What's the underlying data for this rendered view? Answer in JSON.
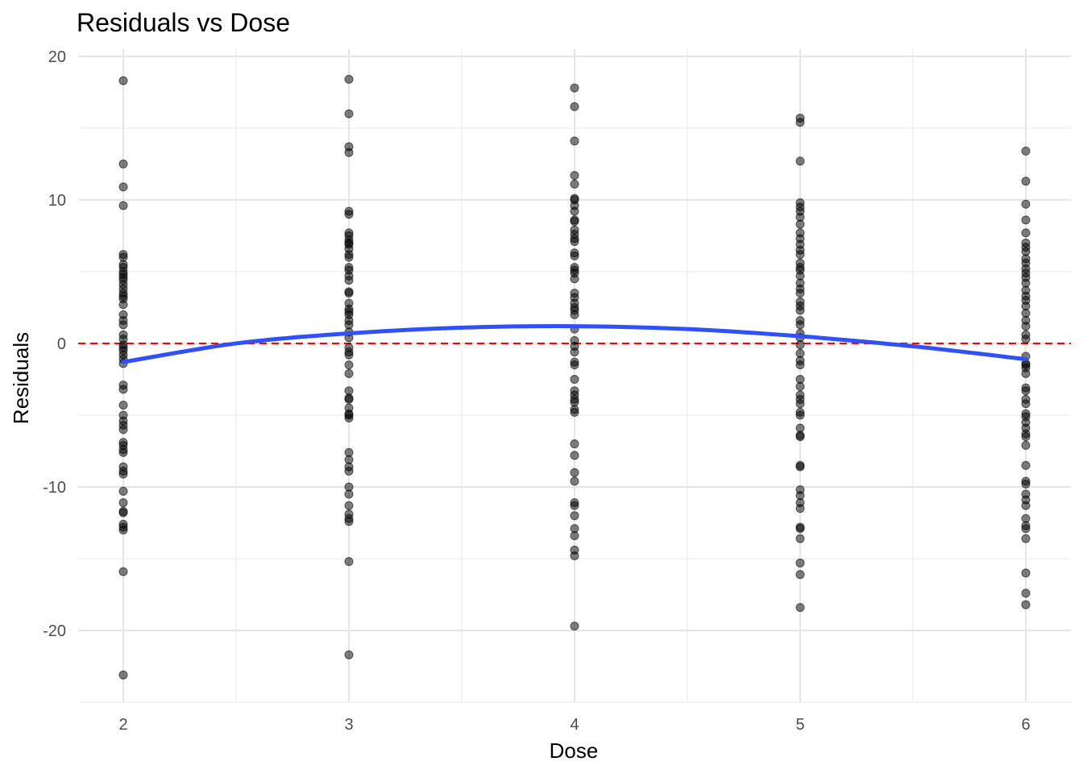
{
  "chart_data": {
    "type": "scatter",
    "title": "Residuals vs Dose",
    "xlabel": "Dose",
    "ylabel": "Residuals",
    "xlim": [
      1.8,
      6.2
    ],
    "ylim": [
      -25,
      20.5
    ],
    "x_ticks": [
      2,
      3,
      4,
      5,
      6
    ],
    "y_ticks": [
      -20,
      -10,
      0,
      10,
      20
    ],
    "x_tick_labels": [
      "2",
      "3",
      "4",
      "5",
      "6"
    ],
    "y_tick_labels": [
      "-20",
      "-10",
      "0",
      "10",
      "20"
    ],
    "grid": true,
    "reference_line": {
      "y": 0,
      "style": "dashed",
      "color": "#ff0000"
    },
    "point_color": "#000000",
    "point_opacity": 0.5,
    "smooth_color": "#3050f8",
    "smooth_curve": {
      "x": [
        2,
        2.5,
        3,
        3.5,
        4,
        4.5,
        5,
        5.5,
        6
      ],
      "y": [
        -1.3,
        0.0,
        0.7,
        1.1,
        1.2,
        1.0,
        0.5,
        -0.2,
        -1.1
      ]
    },
    "series": [
      {
        "x": 2,
        "values": [
          18.3,
          12.5,
          10.9,
          9.6,
          6.2,
          6.0,
          5.5,
          5.3,
          5.0,
          4.8,
          4.6,
          4.4,
          4.1,
          3.8,
          3.5,
          3.3,
          3.1,
          2.7,
          2.0,
          1.6,
          1.3,
          0.6,
          0.3,
          -0.1,
          -0.3,
          -0.5,
          -0.8,
          -1.1,
          -1.4,
          -2.9,
          -3.2,
          -4.3,
          -5.0,
          -5.4,
          -5.7,
          -6.0,
          -6.9,
          -7.1,
          -7.4,
          -7.6,
          -8.6,
          -8.9,
          -9.1,
          -10.3,
          -11.1,
          -11.7,
          -11.8,
          -12.6,
          -12.8,
          -13.0,
          -15.9,
          -23.1
        ]
      },
      {
        "x": 3,
        "values": [
          18.4,
          16.0,
          13.7,
          13.3,
          9.2,
          9.0,
          7.7,
          7.5,
          7.2,
          7.0,
          6.9,
          6.6,
          6.2,
          6.0,
          5.3,
          5.1,
          4.7,
          4.4,
          3.6,
          3.5,
          2.8,
          2.4,
          2.2,
          2.0,
          1.6,
          1.3,
          0.8,
          0.4,
          -0.3,
          -0.6,
          -0.8,
          -1.5,
          -2.1,
          -3.3,
          -3.8,
          -3.9,
          -4.5,
          -4.9,
          -5.0,
          -5.2,
          -7.6,
          -8.1,
          -8.6,
          -8.9,
          -10.0,
          -10.5,
          -11.3,
          -11.9,
          -12.2,
          -12.4,
          -15.2,
          -21.7
        ]
      },
      {
        "x": 4,
        "values": [
          17.8,
          16.5,
          14.1,
          11.7,
          11.1,
          10.1,
          10.0,
          9.6,
          9.2,
          8.6,
          8.5,
          7.9,
          7.6,
          7.3,
          7.1,
          6.3,
          6.1,
          5.3,
          5.1,
          4.9,
          4.5,
          3.5,
          3.2,
          2.8,
          2.5,
          2.3,
          2.0,
          1.0,
          0.2,
          -0.2,
          -0.6,
          -1.3,
          -1.5,
          -2.5,
          -3.3,
          -3.6,
          -3.9,
          -4.1,
          -4.6,
          -4.8,
          -7.0,
          -7.8,
          -9.0,
          -9.6,
          -11.1,
          -11.3,
          -12.0,
          -12.9,
          -13.4,
          -14.4,
          -14.8,
          -19.7
        ]
      },
      {
        "x": 5,
        "values": [
          15.7,
          15.4,
          12.7,
          9.8,
          9.5,
          9.2,
          8.8,
          8.3,
          7.7,
          7.3,
          6.9,
          6.5,
          6.2,
          5.6,
          5.3,
          5.1,
          4.7,
          4.2,
          3.8,
          3.5,
          2.9,
          2.6,
          2.3,
          1.6,
          1.3,
          0.7,
          0.4,
          -0.1,
          -0.7,
          -1.2,
          -1.5,
          -2.5,
          -3.0,
          -3.6,
          -3.9,
          -4.2,
          -4.8,
          -5.0,
          -5.9,
          -6.4,
          -6.5,
          -8.5,
          -8.6,
          -10.2,
          -10.6,
          -11.1,
          -11.5,
          -12.8,
          -12.9,
          -13.6,
          -15.3,
          -16.1,
          -18.4
        ]
      },
      {
        "x": 6,
        "values": [
          13.4,
          11.3,
          9.7,
          8.6,
          7.7,
          7.0,
          6.7,
          6.4,
          5.9,
          5.6,
          5.2,
          4.9,
          4.6,
          4.2,
          3.7,
          3.3,
          3.0,
          2.6,
          2.1,
          1.6,
          1.2,
          0.6,
          0.3,
          -0.9,
          -1.4,
          -1.5,
          -1.7,
          -2.1,
          -3.1,
          -3.3,
          -3.9,
          -4.2,
          -4.9,
          -5.1,
          -5.5,
          -5.9,
          -6.3,
          -6.5,
          -7.1,
          -8.5,
          -9.6,
          -9.8,
          -10.5,
          -10.9,
          -11.3,
          -12.2,
          -12.7,
          -12.9,
          -13.6,
          -16.0,
          -17.4,
          -18.2
        ]
      }
    ]
  }
}
